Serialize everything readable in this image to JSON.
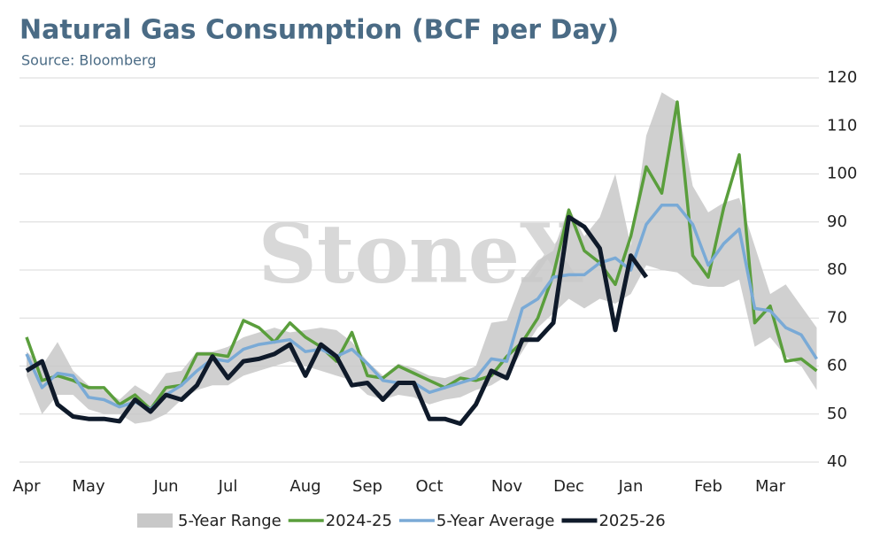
{
  "chart_data": {
    "type": "line",
    "title": "Natural Gas Consumption (BCF per Day)",
    "subtitle": "Source: Bloomberg",
    "watermark": "StoneX",
    "categories": [
      "Apr",
      null,
      null,
      null,
      "May",
      null,
      null,
      null,
      null,
      "Jun",
      null,
      null,
      null,
      "Jul",
      null,
      null,
      null,
      null,
      "Aug",
      null,
      null,
      null,
      "Sep",
      null,
      null,
      null,
      "Oct",
      null,
      null,
      null,
      null,
      "Nov",
      null,
      null,
      null,
      "Dec",
      null,
      null,
      null,
      "Jan",
      null,
      null,
      null,
      null,
      "Feb",
      null,
      null,
      null,
      "Mar",
      null,
      null,
      null
    ],
    "ylim": [
      40,
      120
    ],
    "yticks": [
      40,
      50,
      60,
      70,
      80,
      90,
      100,
      110,
      120
    ],
    "grid": true,
    "series": [
      {
        "name": "5-Year Range",
        "color": "#c8c8c8",
        "high": [
          63,
          60,
          65,
          59,
          56,
          55,
          53,
          56,
          54,
          58.5,
          59,
          63,
          63,
          64,
          66,
          67,
          68,
          67,
          67.5,
          68,
          67.5,
          65,
          61,
          58,
          60.5,
          59.5,
          58,
          57.5,
          58.5,
          60,
          69,
          69.5,
          78,
          82,
          84,
          93,
          87,
          91,
          100,
          85,
          108,
          117,
          115,
          97.5,
          92,
          94,
          95,
          85,
          75,
          77,
          72.5,
          68
        ],
        "low": [
          58,
          50,
          54,
          54,
          51,
          50,
          50,
          48,
          48.5,
          50,
          53,
          55,
          56,
          56,
          58,
          59,
          60,
          61,
          60,
          59,
          58,
          57,
          54,
          53,
          54,
          53.5,
          52,
          53,
          53.5,
          55,
          56,
          58,
          63,
          68,
          71,
          74,
          72,
          74,
          73,
          75,
          81,
          80,
          79.5,
          77,
          76.5,
          76.5,
          78,
          64,
          66,
          62,
          60,
          55
        ]
      },
      {
        "name": "2024-25",
        "color": "#5a9e3c",
        "values": [
          66,
          57,
          58,
          57,
          55.5,
          55.5,
          52,
          54,
          51,
          55.5,
          56,
          62.5,
          62.5,
          62,
          69.5,
          68,
          65,
          69,
          66,
          64,
          61,
          67,
          58,
          57.5,
          60,
          58.5,
          57,
          55.5,
          57.5,
          57,
          58,
          62,
          65,
          70,
          79,
          92.5,
          84,
          81.5,
          77,
          87,
          101.5,
          96,
          115,
          83,
          78.5,
          93,
          104,
          69,
          72.5,
          61,
          61.5,
          59
        ]
      },
      {
        "name": "5-Year Average",
        "color": "#7aaad6",
        "values": [
          62.5,
          55.5,
          58.5,
          58,
          53.5,
          53,
          51.5,
          52.5,
          51,
          54,
          56,
          59,
          61.5,
          61,
          63.5,
          64.5,
          65,
          65.5,
          63,
          63.5,
          62,
          63.5,
          60.5,
          57,
          56.5,
          56.5,
          54.5,
          55.5,
          56.5,
          57.5,
          61.5,
          61,
          72,
          74,
          78.5,
          79,
          79,
          81.5,
          82.5,
          80,
          89.5,
          93.5,
          93.5,
          89.5,
          81,
          85.5,
          88.5,
          72,
          71.5,
          68,
          66.5,
          61.5
        ]
      },
      {
        "name": "2025-26",
        "color": "#0f1a2a",
        "values": [
          59,
          61,
          52,
          49.5,
          49,
          49,
          48.5,
          53,
          50.5,
          54,
          53,
          56,
          62,
          57.5,
          61,
          61.5,
          62.5,
          64.5,
          58,
          64.5,
          62,
          56,
          56.5,
          53,
          56.5,
          56.5,
          49,
          49,
          48,
          52,
          59,
          57.5,
          65.5,
          65.5,
          69,
          91,
          89,
          84.5,
          67.5,
          83,
          78.5,
          null,
          null,
          null,
          null,
          null,
          null,
          null,
          null,
          null,
          null,
          null
        ]
      }
    ]
  }
}
